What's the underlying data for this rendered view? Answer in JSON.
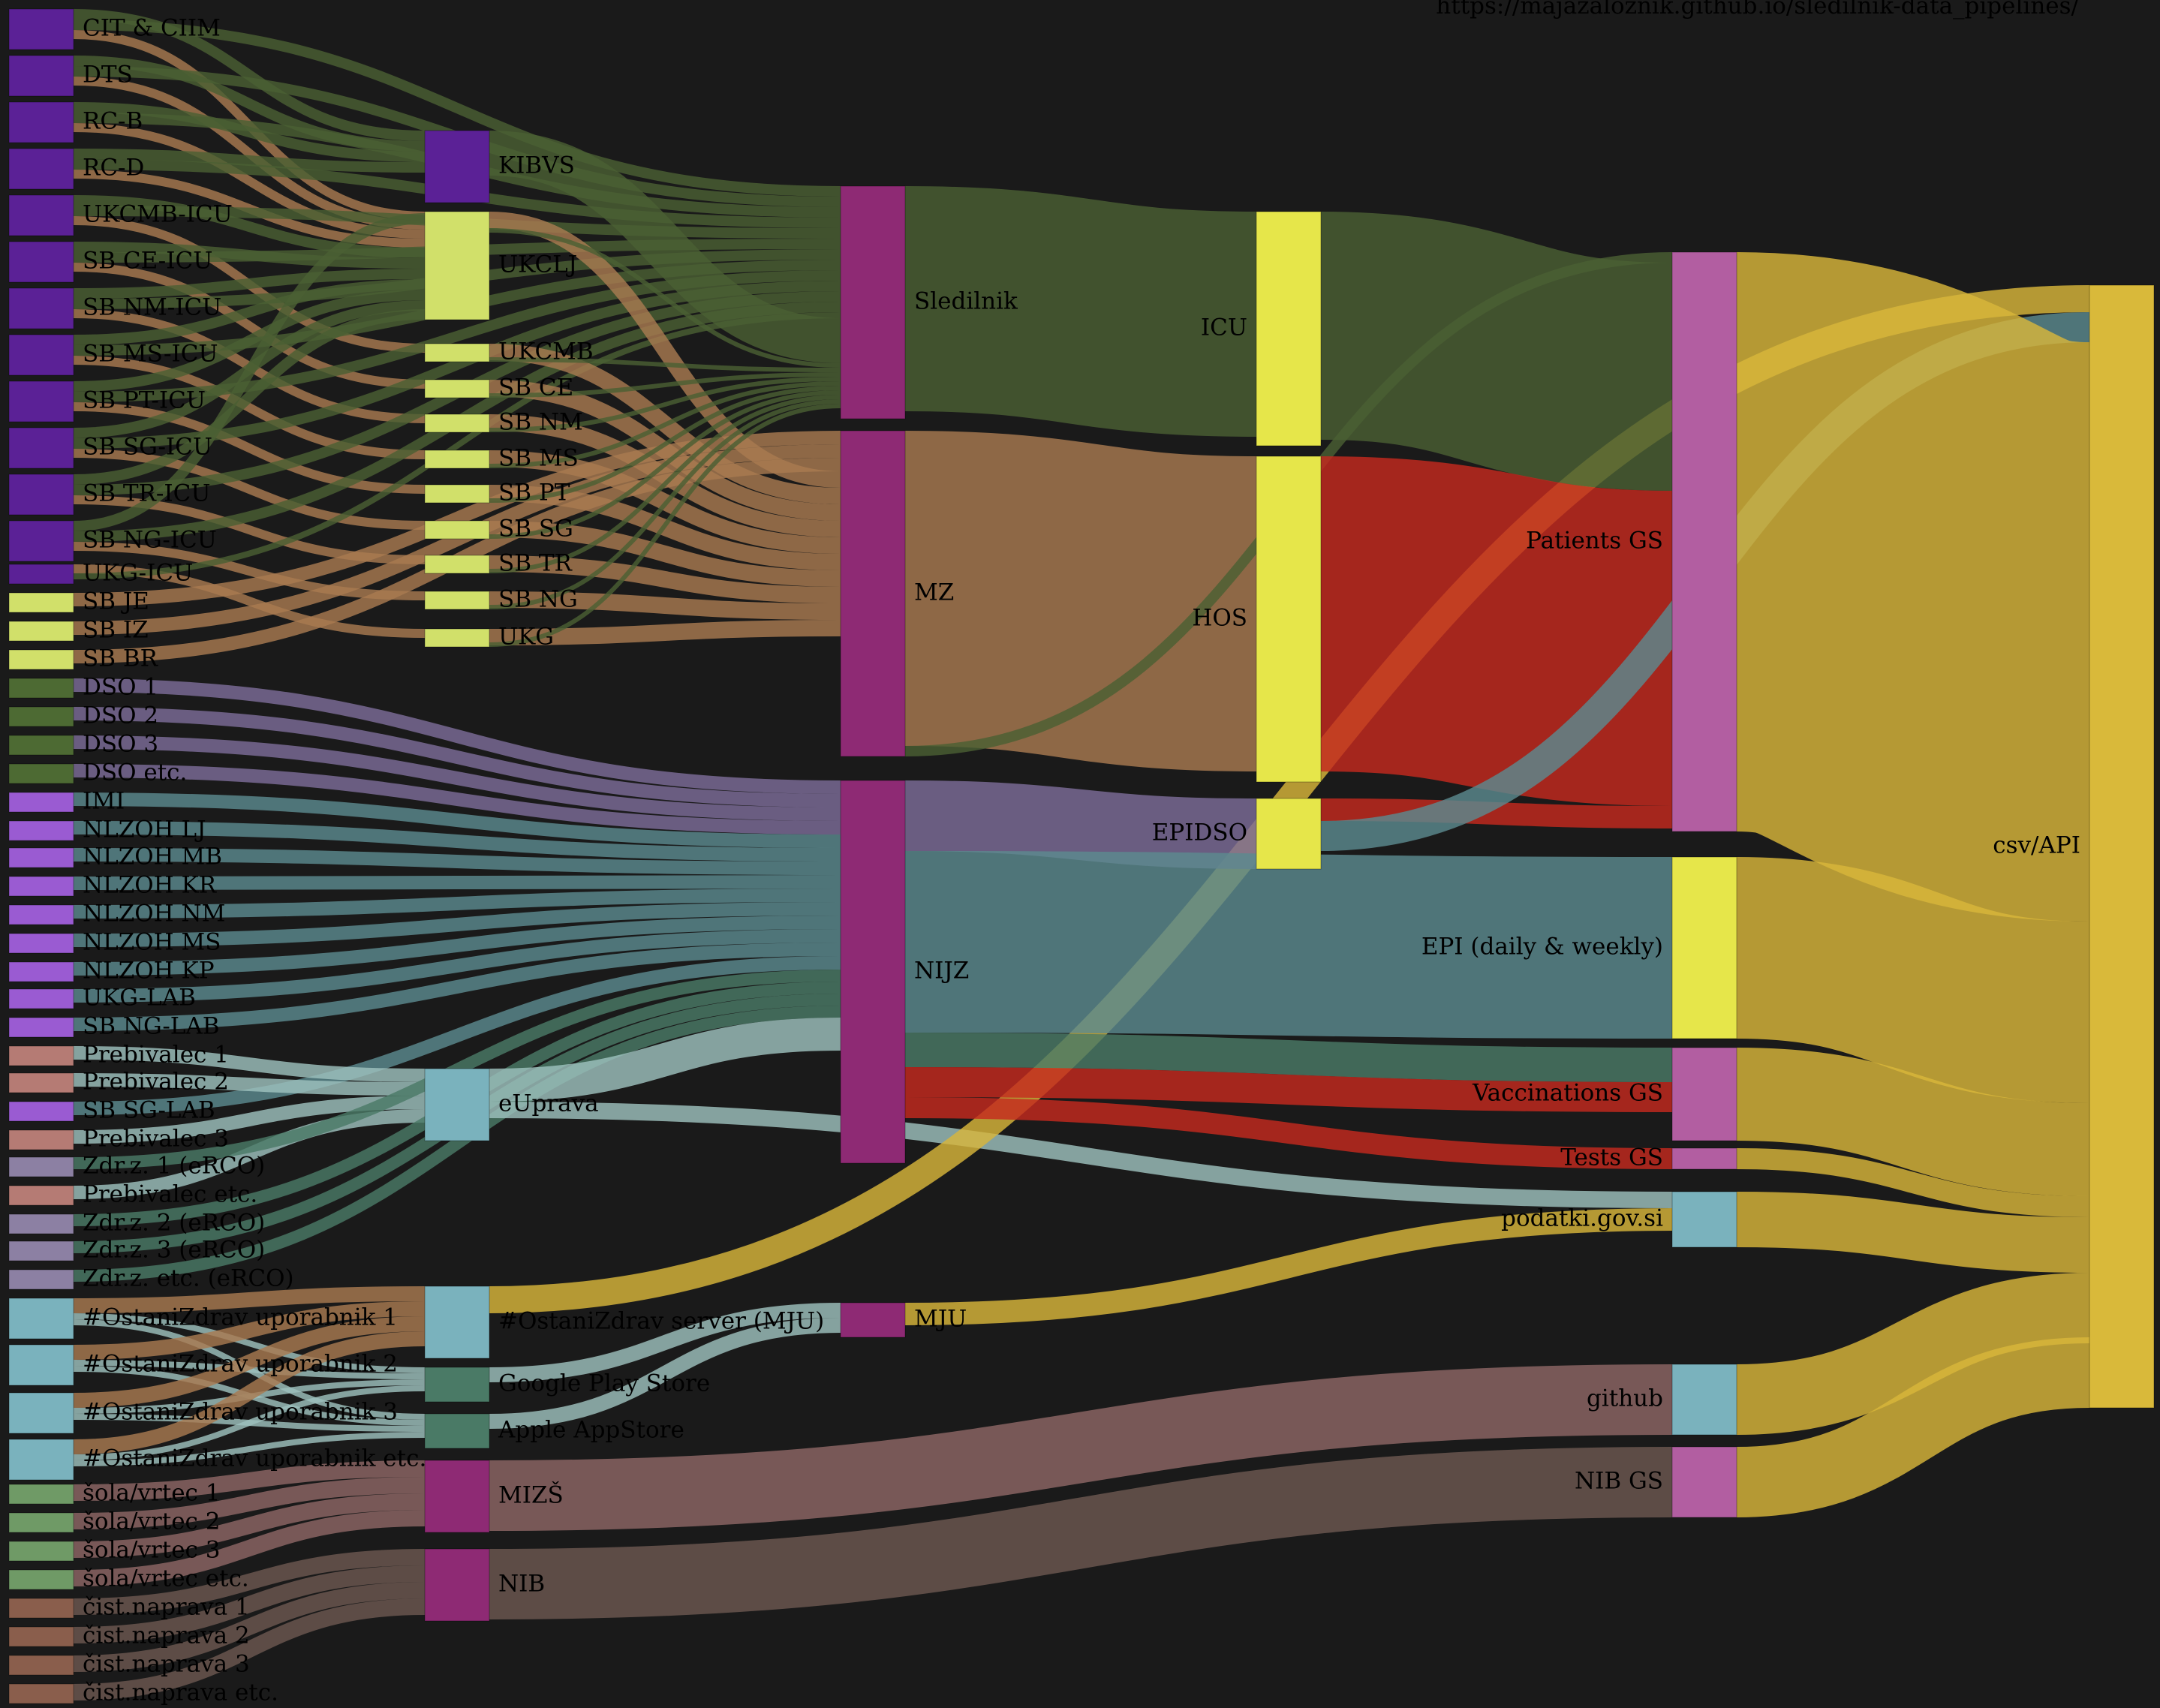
{
  "url": "https://majazaloznik.github.io/sledilnik-data_pipelines/",
  "colors": {
    "background": "#1a1a1a",
    "label_text": "#000000",
    "source_icu": "#5b2196",
    "source_hos": "#d1e06a",
    "source_dso": "#4d6a33",
    "source_lab": "#9a5bd2",
    "source_prebivalec": "#b57b74",
    "source_zdr": "#8c80a3",
    "source_ostanizdrav": "#7ab2bd",
    "source_sola": "#6f9a66",
    "source_cist": "#8a5e4c",
    "hub_node": "#8e2a74",
    "cat_node": "#e6e64a",
    "gs_node": "#b25ea1",
    "csv_node": "#d9b93a",
    "flow_icu": "#4b5f33",
    "flow_hos": "#a87a50",
    "flow_dso": "#7d6d98",
    "flow_epi": "#5c8a8f",
    "flow_vacc": "#c42a1e",
    "flow_tests": "#4a7a66",
    "flow_euprava": "#9ec1bd",
    "flow_csv": "#d8b63a",
    "flow_github": "#8e6665",
    "flow_nib": "#6c5850"
  },
  "nodes": [
    {
      "id": "cit",
      "label": "CIT & CIIM",
      "kind": "source_icu"
    },
    {
      "id": "dts",
      "label": "DTS",
      "kind": "source_icu"
    },
    {
      "id": "rcb",
      "label": "RC-B",
      "kind": "source_icu"
    },
    {
      "id": "rcd",
      "label": "RC-D",
      "kind": "source_icu"
    },
    {
      "id": "ukcmb_icu",
      "label": "UKCMB-ICU",
      "kind": "source_icu"
    },
    {
      "id": "sbce_icu",
      "label": "SB CE-ICU",
      "kind": "source_icu"
    },
    {
      "id": "sbnm_icu",
      "label": "SB NM-ICU",
      "kind": "source_icu"
    },
    {
      "id": "sbms_icu",
      "label": "SB MS-ICU",
      "kind": "source_icu"
    },
    {
      "id": "sbpt_icu",
      "label": "SB PT-ICU",
      "kind": "source_icu"
    },
    {
      "id": "sbsg_icu",
      "label": "SB SG-ICU",
      "kind": "source_icu"
    },
    {
      "id": "sbtr_icu",
      "label": "SB TR-ICU",
      "kind": "source_icu"
    },
    {
      "id": "sbng_icu",
      "label": "SB NG-ICU",
      "kind": "source_icu"
    },
    {
      "id": "ukg_icu",
      "label": "UKG-ICU",
      "kind": "source_icu"
    },
    {
      "id": "sbje",
      "label": "SB JE",
      "kind": "source_hos"
    },
    {
      "id": "sbiz",
      "label": "SB IZ",
      "kind": "source_hos"
    },
    {
      "id": "sbbr",
      "label": "SB BR",
      "kind": "source_hos"
    },
    {
      "id": "dso1",
      "label": "DSO 1",
      "kind": "source_dso"
    },
    {
      "id": "dso2",
      "label": "DSO 2",
      "kind": "source_dso"
    },
    {
      "id": "dso3",
      "label": "DSO 3",
      "kind": "source_dso"
    },
    {
      "id": "dsoetc",
      "label": "DSO etc.",
      "kind": "source_dso"
    },
    {
      "id": "imi",
      "label": "IMI",
      "kind": "source_lab"
    },
    {
      "id": "nlzohlj",
      "label": "NLZOH LJ",
      "kind": "source_lab"
    },
    {
      "id": "nlzohmb",
      "label": "NLZOH MB",
      "kind": "source_lab"
    },
    {
      "id": "nlzohkr",
      "label": "NLZOH KR",
      "kind": "source_lab"
    },
    {
      "id": "nlzohnm",
      "label": "NLZOH NM",
      "kind": "source_lab"
    },
    {
      "id": "nlzohms",
      "label": "NLZOH MS",
      "kind": "source_lab"
    },
    {
      "id": "nlzohkp",
      "label": "NLZOH KP",
      "kind": "source_lab"
    },
    {
      "id": "ukglab",
      "label": "UKG-LAB",
      "kind": "source_lab"
    },
    {
      "id": "sbnglab",
      "label": "SB NG-LAB",
      "kind": "source_lab"
    },
    {
      "id": "preb1",
      "label": "Prebivalec 1",
      "kind": "source_prebivalec"
    },
    {
      "id": "preb2",
      "label": "Prebivalec 2",
      "kind": "source_prebivalec"
    },
    {
      "id": "sbsglab",
      "label": "SB SG-LAB",
      "kind": "source_lab"
    },
    {
      "id": "preb3",
      "label": "Prebivalec 3",
      "kind": "source_prebivalec"
    },
    {
      "id": "zdr1",
      "label": "Zdr.z. 1 (eRCO)",
      "kind": "source_zdr"
    },
    {
      "id": "prebetc",
      "label": "Prebivalec etc.",
      "kind": "source_prebivalec"
    },
    {
      "id": "zdr2",
      "label": "Zdr.z. 2 (eRCO)",
      "kind": "source_zdr"
    },
    {
      "id": "zdr3",
      "label": "Zdr.z. 3 (eRCO)",
      "kind": "source_zdr"
    },
    {
      "id": "zdretc",
      "label": "Zdr.z. etc. (eRCO)",
      "kind": "source_zdr"
    },
    {
      "id": "ou1",
      "label": "#OstaniZdrav uporabnik 1",
      "kind": "source_ostanizdrav"
    },
    {
      "id": "ou2",
      "label": "#OstaniZdrav uporabnik 2",
      "kind": "source_ostanizdrav"
    },
    {
      "id": "ou3",
      "label": "#OstaniZdrav uporabnik 3",
      "kind": "source_ostanizdrav"
    },
    {
      "id": "ouetc",
      "label": "#OstaniZdrav uporabnik etc.",
      "kind": "source_ostanizdrav"
    },
    {
      "id": "sola1",
      "label": "šola/vrtec 1",
      "kind": "source_sola"
    },
    {
      "id": "sola2",
      "label": "šola/vrtec 2",
      "kind": "source_sola"
    },
    {
      "id": "sola3",
      "label": "šola/vrtec 3",
      "kind": "source_sola"
    },
    {
      "id": "solaetc",
      "label": "šola/vrtec etc.",
      "kind": "source_sola"
    },
    {
      "id": "cist1",
      "label": "čist.naprava 1",
      "kind": "source_cist"
    },
    {
      "id": "cist2",
      "label": "čist.naprava 2",
      "kind": "source_cist"
    },
    {
      "id": "cist3",
      "label": "čist.naprava 3",
      "kind": "source_cist"
    },
    {
      "id": "cistetc",
      "label": "čist.naprava etc.",
      "kind": "source_cist"
    },
    {
      "id": "kibvs",
      "label": "KIBVS",
      "kind": "source_icu"
    },
    {
      "id": "ukclj",
      "label": "UKCLJ",
      "kind": "source_hos"
    },
    {
      "id": "ukcmb",
      "label": "UKCMB",
      "kind": "source_hos"
    },
    {
      "id": "sbce",
      "label": "SB CE",
      "kind": "source_hos"
    },
    {
      "id": "sbnm",
      "label": "SB NM",
      "kind": "source_hos"
    },
    {
      "id": "sbms",
      "label": "SB MS",
      "kind": "source_hos"
    },
    {
      "id": "sbpt",
      "label": "SB PT",
      "kind": "source_hos"
    },
    {
      "id": "sbsg",
      "label": "SB SG",
      "kind": "source_hos"
    },
    {
      "id": "sbtr",
      "label": "SB TR",
      "kind": "source_hos"
    },
    {
      "id": "sbng",
      "label": "SB NG",
      "kind": "source_hos"
    },
    {
      "id": "ukg",
      "label": "UKG",
      "kind": "source_hos"
    },
    {
      "id": "euprava",
      "label": "eUprava",
      "kind": "source_ostanizdrav"
    },
    {
      "id": "oz_server",
      "label": "#OstaniZdrav server (MJU)",
      "kind": "source_ostanizdrav"
    },
    {
      "id": "gplay",
      "label": "Google Play Store",
      "kind": "flow_tests"
    },
    {
      "id": "appstore",
      "label": "Apple AppStore",
      "kind": "flow_tests"
    },
    {
      "id": "mizs",
      "label": "MIZŠ",
      "kind": "hub_node"
    },
    {
      "id": "nib",
      "label": "NIB",
      "kind": "hub_node"
    },
    {
      "id": "sledilnik",
      "label": "Sledilnik",
      "kind": "hub_node"
    },
    {
      "id": "mz",
      "label": "MZ",
      "kind": "hub_node"
    },
    {
      "id": "nijz",
      "label": "NIJZ",
      "kind": "hub_node"
    },
    {
      "id": "mju",
      "label": "MJU",
      "kind": "hub_node"
    },
    {
      "id": "icu",
      "label": "ICU",
      "kind": "cat_node"
    },
    {
      "id": "hos",
      "label": "HOS",
      "kind": "cat_node"
    },
    {
      "id": "epidso",
      "label": "EPIDSO",
      "kind": "cat_node"
    },
    {
      "id": "patients_gs",
      "label": "Patients GS",
      "kind": "gs_node"
    },
    {
      "id": "epi",
      "label": "EPI (daily & weekly)",
      "kind": "cat_node"
    },
    {
      "id": "vacc_gs",
      "label": "Vaccinations GS",
      "kind": "gs_node"
    },
    {
      "id": "tests_gs",
      "label": "Tests GS",
      "kind": "gs_node"
    },
    {
      "id": "podatki",
      "label": "podatki.gov.si",
      "kind": "source_ostanizdrav"
    },
    {
      "id": "github",
      "label": "github",
      "kind": "source_ostanizdrav"
    },
    {
      "id": "nib_gs",
      "label": "NIB GS",
      "kind": "gs_node"
    },
    {
      "id": "csv",
      "label": "csv/API",
      "kind": "csv_node"
    }
  ]
}
